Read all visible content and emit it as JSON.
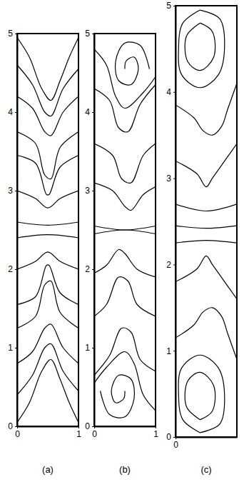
{
  "chart_data": [
    {
      "type": "line",
      "xlabel": "(a)",
      "color": "#000000",
      "xlim": [
        0,
        1
      ],
      "ylim": [
        0,
        5
      ],
      "xticks": [
        0,
        1
      ],
      "yticks": [
        0,
        1,
        2,
        3,
        4,
        5
      ],
      "series": [
        {
          "x": [
            0,
            0.2,
            0.4,
            0.55,
            0.7,
            0.85,
            1
          ],
          "values": [
            4.95,
            4.7,
            4.3,
            4.15,
            4.4,
            4.7,
            4.95
          ]
        },
        {
          "x": [
            0,
            0.25,
            0.45,
            0.55,
            0.75,
            1
          ],
          "values": [
            4.6,
            4.35,
            4.0,
            3.95,
            4.3,
            4.55
          ]
        },
        {
          "x": [
            0,
            0.25,
            0.45,
            0.55,
            0.75,
            1
          ],
          "values": [
            4.2,
            4.05,
            3.75,
            3.7,
            4.0,
            4.2
          ]
        },
        {
          "x": [
            0,
            0.3,
            0.45,
            0.55,
            0.7,
            1
          ],
          "values": [
            3.75,
            3.6,
            3.2,
            3.15,
            3.55,
            3.75
          ]
        },
        {
          "x": [
            0,
            0.3,
            0.48,
            0.52,
            0.7,
            1
          ],
          "values": [
            3.45,
            3.35,
            2.95,
            2.95,
            3.3,
            3.45
          ]
        },
        {
          "x": [
            0,
            0.3,
            0.5,
            0.7,
            1
          ],
          "values": [
            3.0,
            2.9,
            2.78,
            2.9,
            3.0
          ]
        },
        {
          "x": [
            0,
            0.5,
            1
          ],
          "values": [
            2.6,
            2.56,
            2.6
          ]
        },
        {
          "x": [
            0,
            0.2,
            0.4,
            0.55,
            0.7,
            0.85,
            1
          ],
          "values": [
            0.05,
            0.3,
            0.7,
            0.85,
            0.6,
            0.3,
            0.05
          ]
        },
        {
          "x": [
            0,
            0.25,
            0.45,
            0.55,
            0.75,
            1
          ],
          "values": [
            0.4,
            0.65,
            1.0,
            1.05,
            0.7,
            0.45
          ]
        },
        {
          "x": [
            0,
            0.25,
            0.45,
            0.55,
            0.75,
            1
          ],
          "values": [
            0.8,
            0.95,
            1.25,
            1.3,
            1.0,
            0.8
          ]
        },
        {
          "x": [
            0,
            0.3,
            0.45,
            0.55,
            0.7,
            1
          ],
          "values": [
            1.25,
            1.4,
            1.8,
            1.85,
            1.45,
            1.25
          ]
        },
        {
          "x": [
            0,
            0.3,
            0.48,
            0.52,
            0.7,
            1
          ],
          "values": [
            1.55,
            1.65,
            2.05,
            2.05,
            1.7,
            1.55
          ]
        },
        {
          "x": [
            0,
            0.3,
            0.5,
            0.7,
            1
          ],
          "values": [
            2.0,
            2.1,
            2.22,
            2.1,
            2.0
          ]
        },
        {
          "x": [
            0,
            0.5,
            1
          ],
          "values": [
            2.4,
            2.44,
            2.4
          ]
        }
      ]
    },
    {
      "type": "line",
      "xlabel": "(b)",
      "color": "#000000",
      "xlim": [
        0,
        1
      ],
      "ylim": [
        0,
        5
      ],
      "xticks": [
        0,
        1
      ],
      "yticks": [
        0,
        1,
        2,
        3,
        4,
        5
      ],
      "series": [
        {
          "x": [
            0.9,
            0.75,
            0.5,
            0.35,
            0.4,
            0.6,
            0.72,
            0.65,
            0.52,
            0.5
          ],
          "values": [
            4.55,
            4.85,
            4.88,
            4.65,
            4.4,
            4.35,
            4.55,
            4.7,
            4.65,
            4.55
          ]
        },
        {
          "x": [
            0,
            0.2,
            0.35,
            0.5,
            0.8,
            1
          ],
          "values": [
            4.8,
            4.6,
            4.2,
            4.05,
            4.25,
            4.45
          ]
        },
        {
          "x": [
            0,
            0.25,
            0.4,
            0.55,
            0.75,
            1
          ],
          "values": [
            4.3,
            4.15,
            3.8,
            3.75,
            4.1,
            4.35
          ]
        },
        {
          "x": [
            0,
            0.3,
            0.45,
            0.6,
            0.8,
            1
          ],
          "values": [
            3.6,
            3.45,
            3.15,
            3.1,
            3.45,
            3.6
          ]
        },
        {
          "x": [
            0,
            0.3,
            0.5,
            0.6,
            0.8,
            1
          ],
          "values": [
            3.1,
            3.0,
            2.8,
            2.75,
            2.95,
            3.05
          ]
        },
        {
          "x": [
            0,
            0.5,
            1
          ],
          "values": [
            2.55,
            2.5,
            2.55
          ]
        },
        {
          "x": [
            0.1,
            0.25,
            0.5,
            0.65,
            0.6,
            0.4,
            0.28,
            0.35,
            0.48,
            0.5
          ],
          "values": [
            0.45,
            0.15,
            0.12,
            0.35,
            0.6,
            0.65,
            0.45,
            0.3,
            0.35,
            0.45
          ]
        },
        {
          "x": [
            1,
            0.8,
            0.65,
            0.5,
            0.2,
            0
          ],
          "values": [
            0.2,
            0.4,
            0.8,
            0.95,
            0.75,
            0.55
          ]
        },
        {
          "x": [
            1,
            0.75,
            0.6,
            0.45,
            0.25,
            0
          ],
          "values": [
            0.7,
            0.85,
            1.2,
            1.25,
            0.9,
            0.65
          ]
        },
        {
          "x": [
            1,
            0.7,
            0.55,
            0.4,
            0.2,
            0
          ],
          "values": [
            1.4,
            1.55,
            1.85,
            1.9,
            1.55,
            1.4
          ]
        },
        {
          "x": [
            1,
            0.7,
            0.5,
            0.4,
            0.2,
            0
          ],
          "values": [
            1.9,
            2.0,
            2.2,
            2.25,
            2.05,
            1.95
          ]
        },
        {
          "x": [
            1,
            0.5,
            0
          ],
          "values": [
            2.45,
            2.5,
            2.45
          ]
        }
      ]
    },
    {
      "type": "line",
      "xlabel": "(c)",
      "color": "#000000",
      "xlim": [
        0,
        1
      ],
      "ylim": [
        0,
        5
      ],
      "xticks": [
        0
      ],
      "yticks": [
        0,
        1,
        2,
        3,
        4,
        5
      ],
      "series": [
        {
          "x": [
            0.4,
            0.72,
            0.8,
            0.7,
            0.4,
            0.1,
            0.05,
            0.12,
            0.4
          ],
          "values": [
            4.95,
            4.85,
            4.55,
            4.2,
            4.05,
            4.2,
            4.5,
            4.8,
            4.95
          ]
        },
        {
          "x": [
            0.4,
            0.6,
            0.62,
            0.4,
            0.2,
            0.18,
            0.4
          ],
          "values": [
            4.8,
            4.7,
            4.4,
            4.25,
            4.35,
            4.65,
            4.8
          ]
        },
        {
          "x": [
            1,
            0.85,
            0.75,
            0.6,
            0.45,
            0.3,
            0
          ],
          "values": [
            4.1,
            3.8,
            3.6,
            3.5,
            3.55,
            3.7,
            3.85
          ]
        },
        {
          "x": [
            1,
            0.8,
            0.6,
            0.5,
            0.35,
            0
          ],
          "values": [
            3.4,
            3.2,
            3.0,
            2.9,
            3.05,
            3.2
          ]
        },
        {
          "x": [
            0,
            0.5,
            1
          ],
          "values": [
            2.7,
            2.62,
            2.7
          ]
        },
        {
          "x": [
            0,
            0.5,
            1
          ],
          "values": [
            2.45,
            2.42,
            2.45
          ]
        },
        {
          "x": [
            0,
            0.5,
            1
          ],
          "values": [
            2.25,
            2.28,
            2.25
          ]
        },
        {
          "x": [
            1,
            0.8,
            0.6,
            0.5,
            0.35,
            0
          ],
          "values": [
            1.6,
            1.8,
            2.0,
            2.1,
            1.95,
            1.8
          ]
        },
        {
          "x": [
            1,
            0.85,
            0.75,
            0.6,
            0.45,
            0.3,
            0
          ],
          "values": [
            0.9,
            1.2,
            1.4,
            1.5,
            1.45,
            1.3,
            1.15
          ]
        },
        {
          "x": [
            0.4,
            0.72,
            0.8,
            0.7,
            0.4,
            0.1,
            0.05,
            0.12,
            0.4
          ],
          "values": [
            0.05,
            0.15,
            0.45,
            0.8,
            0.95,
            0.8,
            0.5,
            0.2,
            0.05
          ]
        },
        {
          "x": [
            0.4,
            0.6,
            0.62,
            0.4,
            0.2,
            0.18,
            0.4
          ],
          "values": [
            0.2,
            0.3,
            0.6,
            0.75,
            0.65,
            0.35,
            0.2
          ]
        }
      ]
    }
  ]
}
